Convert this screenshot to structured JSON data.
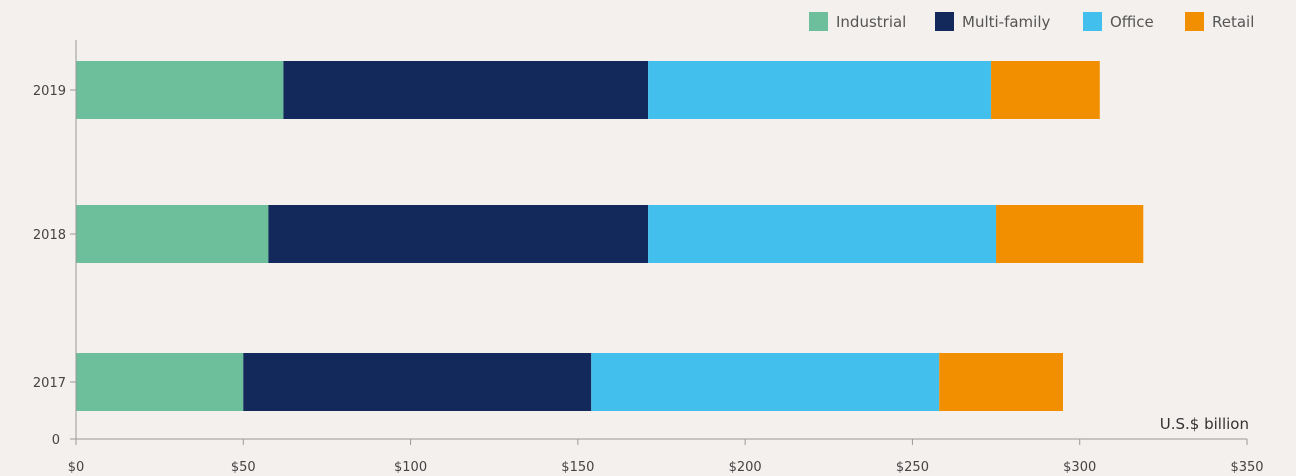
{
  "chart_data": {
    "type": "bar",
    "orientation": "horizontal",
    "stacked": true,
    "categories": [
      "2019",
      "2018",
      "2017"
    ],
    "series": [
      {
        "name": "Industrial",
        "color": "#6dbf9c",
        "values": [
          62,
          57.5,
          50
        ]
      },
      {
        "name": "Multi-family",
        "color": "#13295b",
        "values": [
          109,
          113.5,
          104
        ]
      },
      {
        "name": "Office",
        "color": "#43bfee",
        "values": [
          102.5,
          104,
          104
        ]
      },
      {
        "name": "Retail",
        "color": "#f28f00",
        "values": [
          32.5,
          44,
          37
        ]
      }
    ],
    "x_ticks": [
      "$0",
      "$50",
      "$100",
      "$150",
      "$200",
      "$250",
      "$300",
      "$350"
    ],
    "y_origin_label": "0",
    "xlim": [
      0,
      350
    ],
    "unit_label": "U.S.$ billion",
    "title": "",
    "xlabel": "",
    "ylabel": "",
    "legend_position": "top-right",
    "grid": false
  }
}
